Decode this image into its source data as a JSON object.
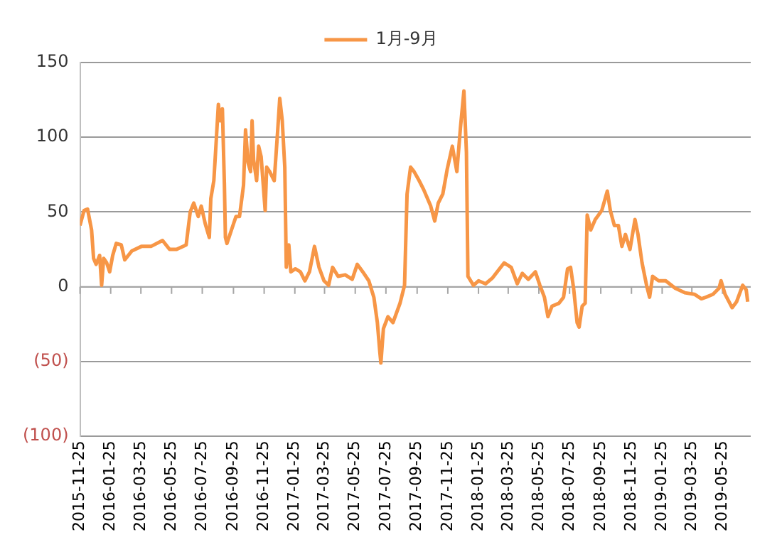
{
  "chart_data": {
    "type": "line",
    "legend": "top",
    "grid": "y",
    "marker": "none",
    "line_style": "solid",
    "x": [
      "2015-11-25",
      "2015-12-03",
      "2015-12-10",
      "2015-12-18",
      "2015-12-22",
      "2015-12-27",
      "2016-01-03",
      "2016-01-07",
      "2016-01-11",
      "2016-01-17",
      "2016-01-23",
      "2016-01-29",
      "2016-02-05",
      "2016-02-15",
      "2016-02-22",
      "2016-03-07",
      "2016-03-26",
      "2016-04-14",
      "2016-05-07",
      "2016-05-21",
      "2016-06-04",
      "2016-06-23",
      "2016-07-01",
      "2016-07-08",
      "2016-07-17",
      "2016-07-23",
      "2016-07-31",
      "2016-08-08",
      "2016-08-11",
      "2016-08-17",
      "2016-08-22",
      "2016-08-26",
      "2016-08-30",
      "2016-09-03",
      "2016-09-07",
      "2016-09-09",
      "2016-09-12",
      "2016-09-21",
      "2016-09-30",
      "2016-10-07",
      "2016-10-15",
      "2016-10-19",
      "2016-10-24",
      "2016-10-29",
      "2016-11-01",
      "2016-11-04",
      "2016-11-10",
      "2016-11-14",
      "2016-11-19",
      "2016-11-27",
      "2016-11-30",
      "2016-12-06",
      "2016-12-15",
      "2016-12-22",
      "2016-12-26",
      "2016-12-31",
      "2017-01-05",
      "2017-01-08",
      "2017-01-13",
      "2017-01-17",
      "2017-01-26",
      "2017-02-05",
      "2017-02-14",
      "2017-02-23",
      "2017-03-05",
      "2017-03-14",
      "2017-03-24",
      "2017-04-02",
      "2017-04-10",
      "2017-04-21",
      "2017-05-05",
      "2017-05-19",
      "2017-05-29",
      "2017-06-09",
      "2017-06-21",
      "2017-07-01",
      "2017-07-08",
      "2017-07-13",
      "2017-07-15",
      "2017-07-20",
      "2017-07-29",
      "2017-08-08",
      "2017-08-22",
      "2017-08-31",
      "2017-09-05",
      "2017-09-12",
      "2017-09-19",
      "2017-09-29",
      "2017-10-08",
      "2017-10-22",
      "2017-10-30",
      "2017-11-06",
      "2017-11-15",
      "2017-11-24",
      "2017-12-04",
      "2017-12-13",
      "2017-12-20",
      "2017-12-27",
      "2018-01-01",
      "2018-01-04",
      "2018-01-15",
      "2018-01-25",
      "2018-02-08",
      "2018-02-22",
      "2018-03-03",
      "2018-03-17",
      "2018-03-31",
      "2018-04-12",
      "2018-04-22",
      "2018-05-04",
      "2018-05-18",
      "2018-05-27",
      "2018-06-05",
      "2018-06-12",
      "2018-06-20",
      "2018-07-04",
      "2018-07-13",
      "2018-07-21",
      "2018-07-27",
      "2018-08-02",
      "2018-08-09",
      "2018-08-13",
      "2018-08-19",
      "2018-08-25",
      "2018-08-29",
      "2018-09-05",
      "2018-09-14",
      "2018-09-27",
      "2018-10-08",
      "2018-10-14",
      "2018-10-22",
      "2018-10-30",
      "2018-11-06",
      "2018-11-13",
      "2018-11-22",
      "2018-12-02",
      "2018-12-08",
      "2018-12-16",
      "2018-12-25",
      "2018-12-31",
      "2019-01-06",
      "2019-01-18",
      "2019-02-01",
      "2019-02-20",
      "2019-03-11",
      "2019-03-30",
      "2019-04-13",
      "2019-04-22",
      "2019-05-06",
      "2019-05-18",
      "2019-05-22",
      "2019-05-30",
      "2019-06-13",
      "2019-06-22",
      "2019-07-04",
      "2019-07-11",
      "2019-07-14"
    ],
    "series": [
      {
        "name": "1月-9月",
        "color": "#f79646",
        "values": [
          41,
          51,
          52,
          38,
          19,
          15,
          21,
          1,
          19,
          16,
          10,
          21,
          29,
          28,
          18,
          24,
          27,
          27,
          31,
          25,
          25,
          28,
          50,
          56,
          47,
          54,
          42,
          33,
          59,
          71,
          99,
          122,
          111,
          119,
          68,
          33,
          29,
          38,
          47,
          47,
          68,
          105,
          83,
          77,
          111,
          85,
          71,
          94,
          87,
          51,
          80,
          77,
          71,
          105,
          126,
          111,
          80,
          13,
          28,
          10,
          12,
          10,
          4,
          10,
          27,
          13,
          4,
          1,
          13,
          7,
          8,
          5,
          15,
          10,
          4,
          -7,
          -24,
          -44,
          -51,
          -28,
          -20,
          -24,
          -11,
          1,
          62,
          80,
          77,
          71,
          65,
          54,
          44,
          56,
          62,
          79,
          94,
          77,
          106,
          131,
          90,
          7,
          1,
          4,
          2,
          6,
          10,
          16,
          13,
          2,
          9,
          5,
          10,
          1,
          -7,
          -20,
          -13,
          -11,
          -7,
          12,
          13,
          -1,
          -24,
          -27,
          -13,
          -11,
          48,
          38,
          45,
          51,
          64,
          51,
          41,
          41,
          27,
          35,
          25,
          45,
          35,
          16,
          1,
          -7,
          7,
          4,
          4,
          -1,
          -4,
          -5,
          -8,
          -7,
          -5,
          -1,
          4,
          -5,
          -14,
          -10,
          1,
          -2,
          -10
        ]
      }
    ],
    "xlim": [
      "2015-11-25",
      "2019-07-20"
    ],
    "xticks": [
      "2015-11-25",
      "2016-01-25",
      "2016-03-25",
      "2016-05-25",
      "2016-07-25",
      "2016-09-25",
      "2016-11-25",
      "2017-01-25",
      "2017-03-25",
      "2017-05-25",
      "2017-07-25",
      "2017-09-25",
      "2017-11-25",
      "2018-01-25",
      "2018-03-25",
      "2018-05-25",
      "2018-07-25",
      "2018-09-25",
      "2018-11-25",
      "2019-01-25",
      "2019-03-25",
      "2019-05-25"
    ],
    "ylim": [
      -100,
      150
    ],
    "yticks": [
      {
        "value": -100,
        "label": "(100)"
      },
      {
        "value": -50,
        "label": "(50)"
      },
      0,
      50,
      100,
      150
    ]
  }
}
